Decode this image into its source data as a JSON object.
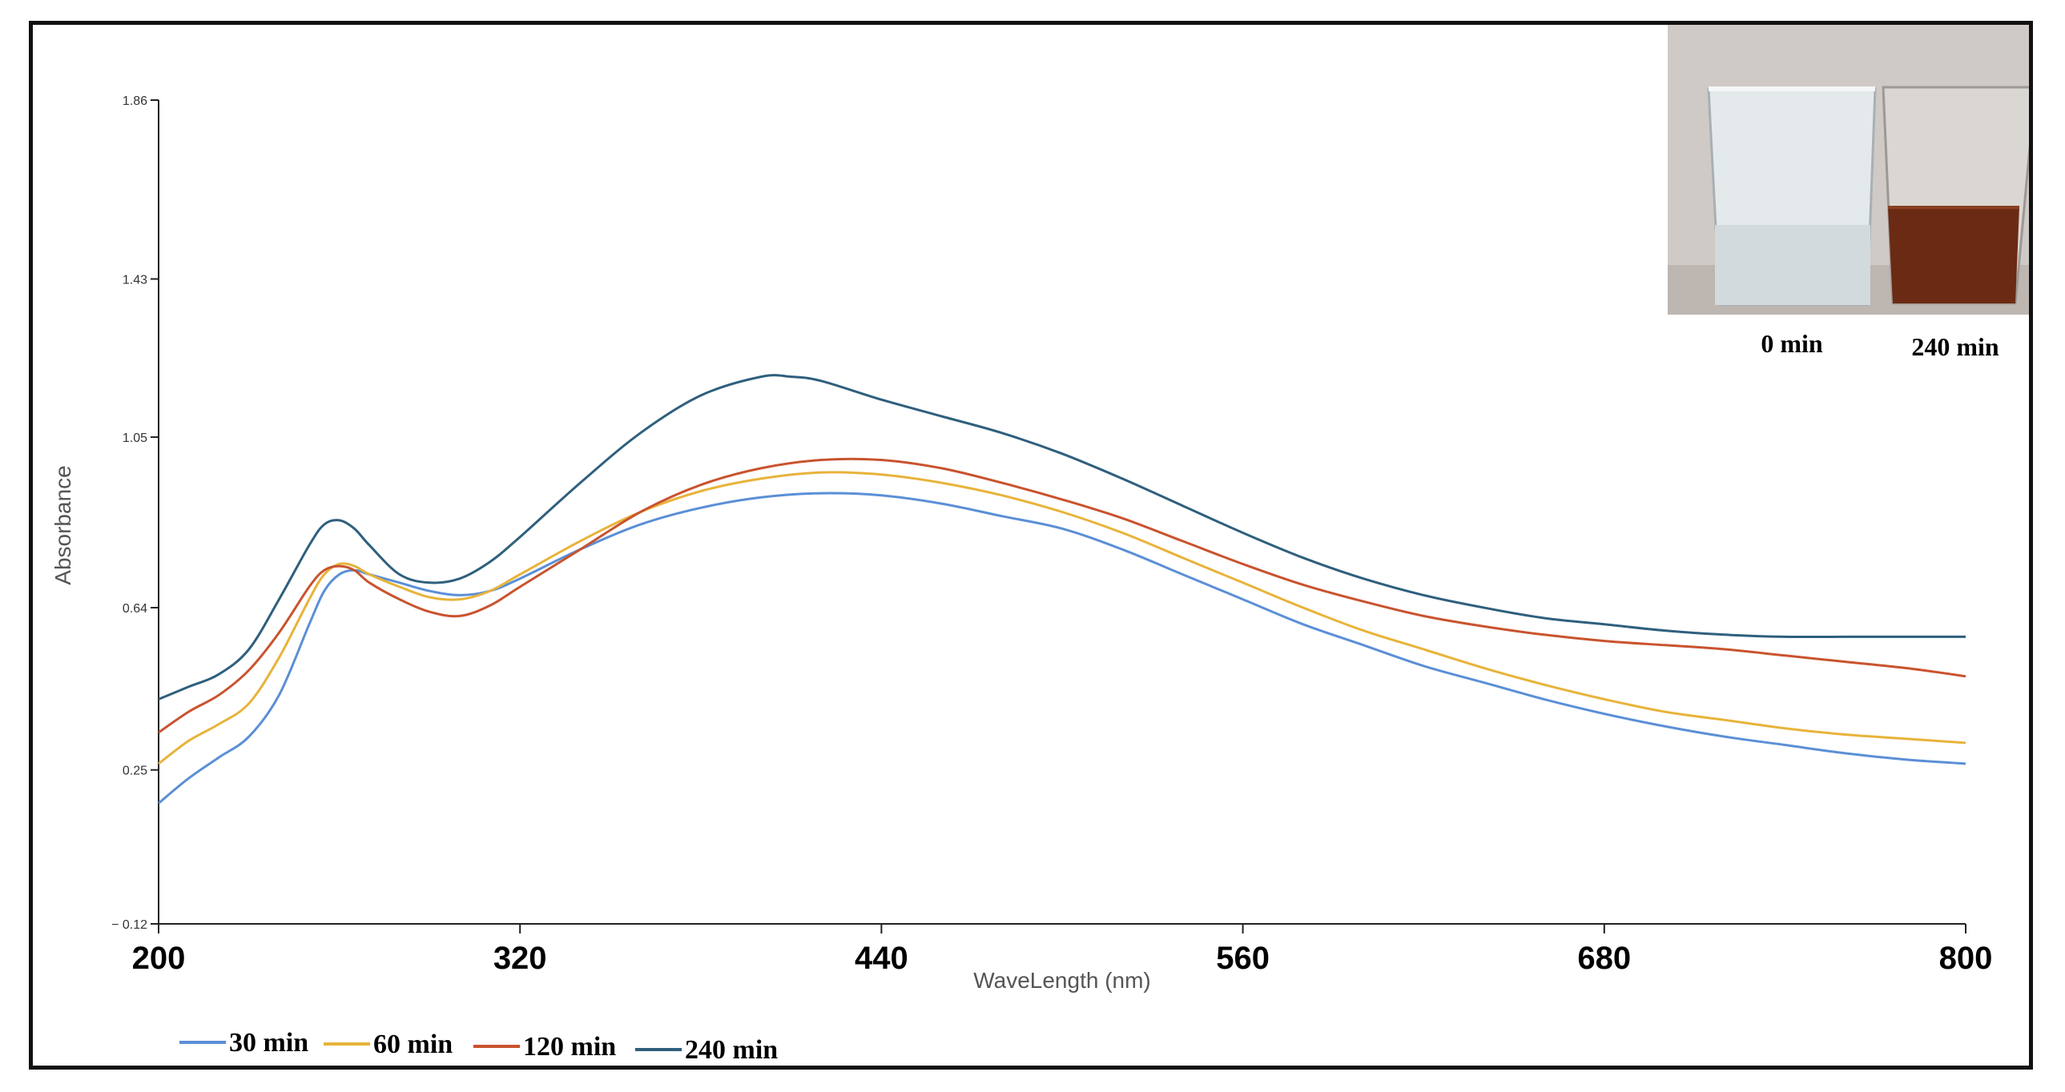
{
  "chart_data": {
    "type": "line",
    "title": "",
    "xlabel": "WaveLength (nm)",
    "ylabel": "Absorbance",
    "xlim": [
      200,
      800
    ],
    "ylim": [
      -0.12,
      1.86
    ],
    "x_ticks": [
      200,
      320,
      440,
      560,
      680,
      800
    ],
    "x_tick_labels": [
      "200",
      "320",
      "440",
      "560",
      "680",
      "800"
    ],
    "y_ticks": [
      -0.12,
      0.25,
      0.64,
      1.05,
      1.43,
      1.86
    ],
    "y_tick_labels": [
      "− 0.12",
      "0.25",
      "0.64",
      "1.05",
      "1.43",
      "1.86"
    ],
    "legend_position": "bottom-left",
    "series": [
      {
        "name": "30 min",
        "color": "#5b8fd6",
        "points": [
          [
            200,
            0.17
          ],
          [
            210,
            0.23
          ],
          [
            220,
            0.28
          ],
          [
            230,
            0.33
          ],
          [
            240,
            0.43
          ],
          [
            250,
            0.6
          ],
          [
            255,
            0.68
          ],
          [
            260,
            0.72
          ],
          [
            265,
            0.73
          ],
          [
            270,
            0.72
          ],
          [
            280,
            0.7
          ],
          [
            290,
            0.68
          ],
          [
            300,
            0.67
          ],
          [
            310,
            0.68
          ],
          [
            320,
            0.71
          ],
          [
            340,
            0.78
          ],
          [
            360,
            0.84
          ],
          [
            380,
            0.88
          ],
          [
            400,
            0.905
          ],
          [
            420,
            0.915
          ],
          [
            440,
            0.91
          ],
          [
            460,
            0.89
          ],
          [
            480,
            0.86
          ],
          [
            500,
            0.83
          ],
          [
            520,
            0.78
          ],
          [
            540,
            0.72
          ],
          [
            560,
            0.66
          ],
          [
            580,
            0.6
          ],
          [
            600,
            0.55
          ],
          [
            620,
            0.5
          ],
          [
            640,
            0.46
          ],
          [
            660,
            0.42
          ],
          [
            680,
            0.385
          ],
          [
            700,
            0.355
          ],
          [
            720,
            0.33
          ],
          [
            740,
            0.31
          ],
          [
            760,
            0.29
          ],
          [
            780,
            0.275
          ],
          [
            800,
            0.265
          ]
        ]
      },
      {
        "name": "60 min",
        "color": "#e8b33a",
        "points": [
          [
            200,
            0.265
          ],
          [
            210,
            0.32
          ],
          [
            220,
            0.36
          ],
          [
            230,
            0.41
          ],
          [
            240,
            0.52
          ],
          [
            250,
            0.66
          ],
          [
            255,
            0.72
          ],
          [
            260,
            0.745
          ],
          [
            265,
            0.74
          ],
          [
            270,
            0.72
          ],
          [
            280,
            0.69
          ],
          [
            290,
            0.665
          ],
          [
            300,
            0.66
          ],
          [
            310,
            0.68
          ],
          [
            320,
            0.72
          ],
          [
            340,
            0.8
          ],
          [
            360,
            0.87
          ],
          [
            380,
            0.92
          ],
          [
            400,
            0.95
          ],
          [
            420,
            0.965
          ],
          [
            440,
            0.96
          ],
          [
            460,
            0.94
          ],
          [
            480,
            0.91
          ],
          [
            500,
            0.87
          ],
          [
            520,
            0.82
          ],
          [
            540,
            0.76
          ],
          [
            560,
            0.7
          ],
          [
            580,
            0.64
          ],
          [
            600,
            0.585
          ],
          [
            620,
            0.54
          ],
          [
            640,
            0.495
          ],
          [
            660,
            0.455
          ],
          [
            680,
            0.42
          ],
          [
            700,
            0.39
          ],
          [
            720,
            0.37
          ],
          [
            740,
            0.35
          ],
          [
            760,
            0.335
          ],
          [
            780,
            0.325
          ],
          [
            800,
            0.315
          ]
        ]
      },
      {
        "name": "120 min",
        "color": "#c9532e",
        "points": [
          [
            200,
            0.34
          ],
          [
            210,
            0.39
          ],
          [
            220,
            0.43
          ],
          [
            230,
            0.49
          ],
          [
            240,
            0.58
          ],
          [
            250,
            0.69
          ],
          [
            255,
            0.73
          ],
          [
            260,
            0.74
          ],
          [
            265,
            0.73
          ],
          [
            270,
            0.7
          ],
          [
            280,
            0.66
          ],
          [
            290,
            0.63
          ],
          [
            300,
            0.62
          ],
          [
            310,
            0.645
          ],
          [
            320,
            0.69
          ],
          [
            340,
            0.78
          ],
          [
            360,
            0.87
          ],
          [
            380,
            0.935
          ],
          [
            400,
            0.975
          ],
          [
            420,
            0.995
          ],
          [
            440,
            0.995
          ],
          [
            460,
            0.975
          ],
          [
            480,
            0.94
          ],
          [
            500,
            0.9
          ],
          [
            520,
            0.855
          ],
          [
            540,
            0.8
          ],
          [
            560,
            0.745
          ],
          [
            580,
            0.695
          ],
          [
            600,
            0.655
          ],
          [
            620,
            0.62
          ],
          [
            640,
            0.595
          ],
          [
            660,
            0.575
          ],
          [
            680,
            0.56
          ],
          [
            700,
            0.55
          ],
          [
            720,
            0.54
          ],
          [
            740,
            0.525
          ],
          [
            760,
            0.51
          ],
          [
            780,
            0.495
          ],
          [
            800,
            0.475
          ]
        ]
      },
      {
        "name": "240 min",
        "color": "#2f5f7d",
        "points": [
          [
            200,
            0.42
          ],
          [
            210,
            0.45
          ],
          [
            220,
            0.48
          ],
          [
            230,
            0.54
          ],
          [
            240,
            0.66
          ],
          [
            250,
            0.79
          ],
          [
            255,
            0.84
          ],
          [
            260,
            0.85
          ],
          [
            265,
            0.83
          ],
          [
            270,
            0.79
          ],
          [
            280,
            0.72
          ],
          [
            290,
            0.7
          ],
          [
            300,
            0.71
          ],
          [
            310,
            0.75
          ],
          [
            320,
            0.81
          ],
          [
            340,
            0.94
          ],
          [
            360,
            1.06
          ],
          [
            380,
            1.15
          ],
          [
            400,
            1.195
          ],
          [
            410,
            1.195
          ],
          [
            420,
            1.185
          ],
          [
            440,
            1.14
          ],
          [
            460,
            1.1
          ],
          [
            480,
            1.06
          ],
          [
            500,
            1.01
          ],
          [
            520,
            0.95
          ],
          [
            540,
            0.885
          ],
          [
            560,
            0.82
          ],
          [
            580,
            0.76
          ],
          [
            600,
            0.71
          ],
          [
            620,
            0.67
          ],
          [
            640,
            0.64
          ],
          [
            660,
            0.615
          ],
          [
            680,
            0.6
          ],
          [
            700,
            0.585
          ],
          [
            720,
            0.575
          ],
          [
            740,
            0.57
          ],
          [
            760,
            0.57
          ],
          [
            780,
            0.57
          ],
          [
            800,
            0.57
          ]
        ]
      }
    ],
    "inset": {
      "labels": [
        "0 min",
        "240 min"
      ],
      "beaker_colors": [
        "#dfe6e8",
        "#6b2a14"
      ]
    }
  },
  "colors": {
    "axis": "#222222",
    "inset_background": "#c9c4c0"
  }
}
